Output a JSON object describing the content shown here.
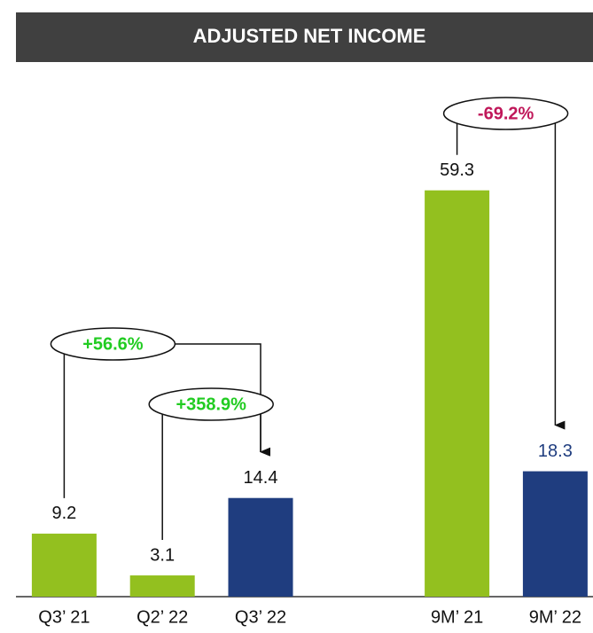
{
  "chart_data": {
    "type": "bar",
    "title": "ADJUSTED NET INCOME",
    "categories": [
      "Q3’ 21",
      "Q2’ 22",
      "Q3’ 22",
      null,
      "9M’ 21",
      "9M’ 22"
    ],
    "values": [
      9.2,
      3.1,
      14.4,
      null,
      59.3,
      18.3
    ],
    "colors": [
      "#93c01f",
      "#93c01f",
      "#1f3d7f",
      null,
      "#93c01f",
      "#1f3d7f"
    ],
    "label_colors": [
      "#111111",
      "#111111",
      "#111111",
      null,
      "#111111",
      "#1f3d7f"
    ],
    "ylim": [
      0,
      70
    ],
    "annotations": [
      {
        "value": 56.6,
        "label": "+56.6%",
        "from": 0,
        "to": 2,
        "color": "#22cc22"
      },
      {
        "value": 358.9,
        "label": "+358.9%",
        "from": 1,
        "to": 2,
        "color": "#22cc22"
      },
      {
        "value": -69.2,
        "label": "-69.2%",
        "from": 4,
        "to": 5,
        "color": "#c0185a"
      }
    ]
  }
}
